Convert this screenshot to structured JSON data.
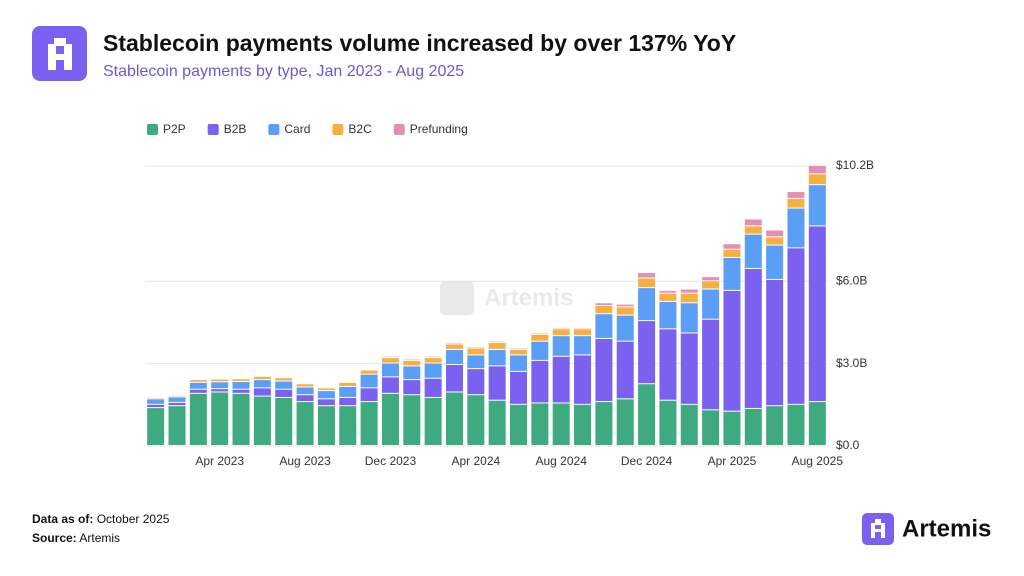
{
  "chart_data": {
    "type": "stacked_bar",
    "title": "Stablecoin payments volume increased by over 137% YoY",
    "subtitle": "Stablecoin payments by type, Jan 2023 - Aug 2025",
    "categories": [
      null,
      null,
      null,
      "Apr 2023",
      null,
      null,
      null,
      "Aug 2023",
      null,
      null,
      null,
      "Dec 2023",
      null,
      null,
      null,
      "Apr 2024",
      null,
      null,
      null,
      "Aug 2024",
      null,
      null,
      null,
      "Dec 2024",
      null,
      null,
      null,
      "Apr 2025",
      null,
      null,
      null,
      "Aug 2025"
    ],
    "series": [
      {
        "name": "P2P",
        "color": "#3fa97f",
        "values": [
          1.38,
          1.45,
          1.9,
          1.95,
          1.9,
          1.8,
          1.75,
          1.6,
          1.45,
          1.45,
          1.6,
          1.9,
          1.85,
          1.75,
          1.95,
          1.85,
          1.65,
          1.5,
          1.55,
          1.55,
          1.5,
          1.6,
          1.7,
          2.25,
          1.65,
          1.5,
          1.3,
          1.25,
          1.35,
          1.45,
          1.5,
          1.6
        ]
      },
      {
        "name": "B2B",
        "color": "#7b61f0",
        "values": [
          0.12,
          0.12,
          0.15,
          0.12,
          0.15,
          0.3,
          0.3,
          0.25,
          0.25,
          0.3,
          0.5,
          0.6,
          0.55,
          0.7,
          1.0,
          0.95,
          1.25,
          1.2,
          1.55,
          1.7,
          1.8,
          2.3,
          2.1,
          2.3,
          2.6,
          2.6,
          3.3,
          4.4,
          5.1,
          4.6,
          5.7,
          6.4
        ]
      },
      {
        "name": "Card",
        "color": "#5a9ef5",
        "values": [
          0.2,
          0.2,
          0.25,
          0.25,
          0.28,
          0.3,
          0.3,
          0.28,
          0.3,
          0.4,
          0.5,
          0.5,
          0.5,
          0.55,
          0.55,
          0.5,
          0.6,
          0.6,
          0.7,
          0.75,
          0.7,
          0.9,
          0.95,
          1.2,
          1.0,
          1.1,
          1.1,
          1.2,
          1.25,
          1.25,
          1.45,
          1.5
        ]
      },
      {
        "name": "B2C",
        "color": "#f5b041",
        "values": [
          0.05,
          0.05,
          0.1,
          0.1,
          0.1,
          0.12,
          0.12,
          0.12,
          0.1,
          0.15,
          0.15,
          0.2,
          0.2,
          0.2,
          0.2,
          0.25,
          0.25,
          0.2,
          0.25,
          0.25,
          0.25,
          0.3,
          0.3,
          0.35,
          0.3,
          0.35,
          0.3,
          0.3,
          0.3,
          0.3,
          0.35,
          0.4
        ]
      },
      {
        "name": "Prefunding",
        "color": "#e38fb5",
        "values": [
          0.04,
          0.04,
          0.02,
          0.02,
          0.02,
          0.03,
          0.03,
          0.03,
          0.03,
          0.03,
          0.03,
          0.05,
          0.05,
          0.05,
          0.05,
          0.05,
          0.05,
          0.05,
          0.05,
          0.05,
          0.05,
          0.1,
          0.1,
          0.2,
          0.1,
          0.15,
          0.15,
          0.2,
          0.25,
          0.25,
          0.25,
          0.3
        ]
      }
    ],
    "ylim": [
      0,
      10.2
    ],
    "yticks": [
      {
        "value": 0,
        "label": "$0.0"
      },
      {
        "value": 3,
        "label": "$3.0B"
      },
      {
        "value": 6,
        "label": "$6.0B"
      },
      {
        "value": 10.2,
        "label": "$10.2B"
      }
    ],
    "grid": true,
    "legend": "top-left"
  },
  "brand": "Artemis",
  "footer": [
    {
      "label": "Data as of:",
      "value": "October 2025"
    },
    {
      "label": "Source:",
      "value": "Artemis"
    }
  ]
}
